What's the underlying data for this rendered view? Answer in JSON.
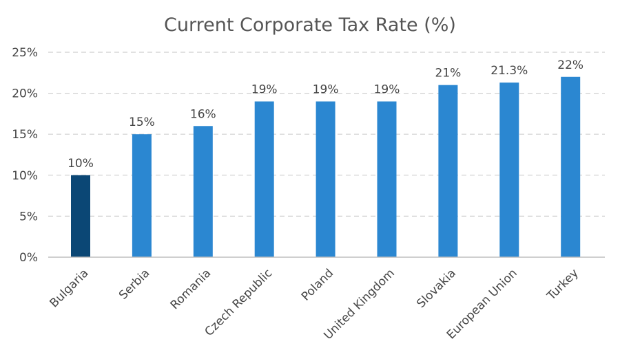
{
  "chart_data": {
    "type": "bar",
    "title": "Current Corporate Tax Rate (%)",
    "categories": [
      "Bulgaria",
      "Serbia",
      "Romania",
      "Czech Republic",
      "Poland",
      "United Kingdom",
      "Slovakia",
      "European Union",
      "Turkey"
    ],
    "values": [
      10,
      15,
      16,
      19,
      19,
      19,
      21,
      21.3,
      22
    ],
    "data_labels": [
      "10%",
      "15%",
      "16%",
      "19%",
      "19%",
      "19%",
      "21%",
      "21.3%",
      "22%"
    ],
    "ylim": [
      0,
      25
    ],
    "y_ticks": [
      0,
      5,
      10,
      15,
      20,
      25
    ],
    "y_tick_labels": [
      "0%",
      "5%",
      "10%",
      "15%",
      "20%",
      "25%"
    ],
    "grid": true,
    "legend": "none",
    "colors": {
      "highlight": "#0b4775",
      "default": "#2b87d1"
    },
    "highlight_index": 0
  }
}
